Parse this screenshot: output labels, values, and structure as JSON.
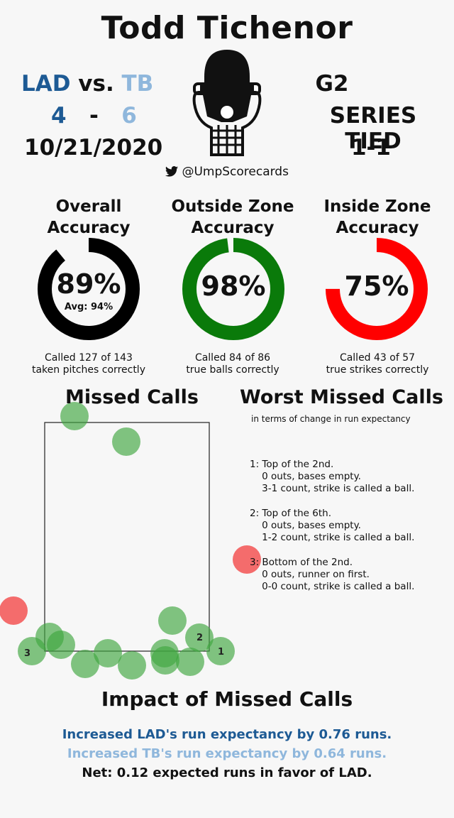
{
  "umpire": "Todd Tichenor",
  "matchup": {
    "away_team": "LAD",
    "vs": "vs.",
    "home_team": "TB",
    "away_score": "4",
    "dash": "-",
    "home_score": "6",
    "date": "10/21/2020",
    "game": "G2",
    "series_status": "SERIES TIED",
    "series_record": "1-1"
  },
  "social": {
    "icon": "twitter-bird-icon",
    "handle": "@UmpScorecards"
  },
  "colors": {
    "lad": "#1d5a94",
    "tb": "#8fb7dc",
    "overall": "#000000",
    "outside": "#0a7a0a",
    "inside": "#ff0000",
    "correct_call": "#3fa63f",
    "missed_strike": "#f24848"
  },
  "metrics": [
    {
      "title_line1": "Overall",
      "title_line2": "Accuracy",
      "percent": "89%",
      "value": 0.89,
      "avg": "Avg: 94%",
      "desc_line1": "Called 127 of 143",
      "desc_line2": "taken pitches correctly"
    },
    {
      "title_line1": "Outside Zone",
      "title_line2": "Accuracy",
      "percent": "98%",
      "value": 0.98,
      "avg": "",
      "desc_line1": "Called 84 of 86",
      "desc_line2": "true balls correctly"
    },
    {
      "title_line1": "Inside Zone",
      "title_line2": "Accuracy",
      "percent": "75%",
      "value": 0.75,
      "avg": "",
      "desc_line1": "Called 43 of 57",
      "desc_line2": "true strikes correctly"
    }
  ],
  "missed_calls": {
    "title": "Missed Calls",
    "labels": [
      "1",
      "2",
      "3"
    ]
  },
  "worst_calls": {
    "title": "Worst Missed Calls",
    "subtitle": "in terms of change in run expectancy",
    "items": [
      {
        "line1": "1: Top of the 2nd.",
        "line2": "    0 outs, bases empty.",
        "line3": "    3-1 count, strike is called a ball."
      },
      {
        "line1": "2: Top of the 6th.",
        "line2": "    0 outs, bases empty.",
        "line3": "    1-2 count, strike is called a ball."
      },
      {
        "line1": "3: Bottom of the 2nd.",
        "line2": "    0 outs, runner on first.",
        "line3": "    0-0 count, strike is called a ball."
      }
    ]
  },
  "impact": {
    "title": "Impact of Missed Calls",
    "lad_line": "Increased LAD's run expectancy by 0.76 runs.",
    "tb_line": "Increased TB's run expectancy by 0.64 runs.",
    "net_line": "Net: 0.12 expected runs in favor of LAD."
  }
}
